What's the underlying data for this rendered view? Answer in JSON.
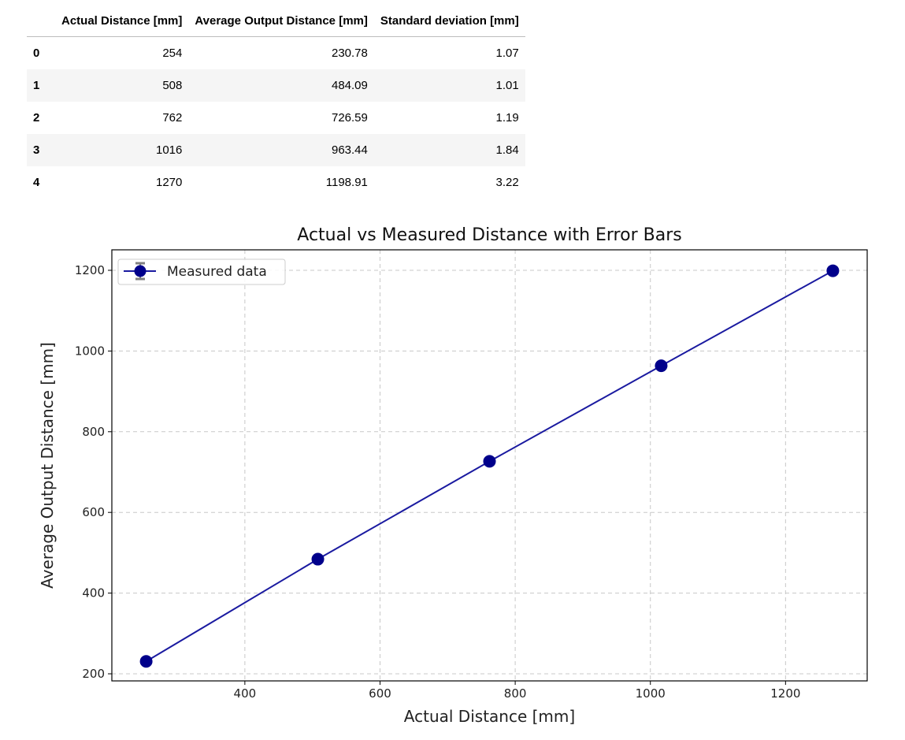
{
  "table": {
    "columns": [
      "Actual Distance [mm]",
      "Average Output Distance [mm]",
      "Standard deviation [mm]"
    ],
    "rows": [
      {
        "index": "0",
        "cells": [
          "254",
          "230.78",
          "1.07"
        ]
      },
      {
        "index": "1",
        "cells": [
          "508",
          "484.09",
          "1.01"
        ]
      },
      {
        "index": "2",
        "cells": [
          "762",
          "726.59",
          "1.19"
        ]
      },
      {
        "index": "3",
        "cells": [
          "1016",
          "963.44",
          "1.84"
        ]
      },
      {
        "index": "4",
        "cells": [
          "1270",
          "1198.91",
          "3.22"
        ]
      }
    ]
  },
  "chart_data": {
    "type": "line",
    "title": "Actual vs Measured Distance with Error Bars",
    "xlabel": "Actual Distance [mm]",
    "ylabel": "Average Output Distance [mm]",
    "x": [
      254,
      508,
      762,
      1016,
      1270
    ],
    "series": [
      {
        "name": "Measured data",
        "values": [
          230.78,
          484.09,
          726.59,
          963.44,
          1198.91
        ],
        "errors": [
          1.07,
          1.01,
          1.19,
          1.84,
          3.22
        ],
        "color": "#00008b",
        "line_color": "#1a1aa0",
        "error_color": "#808080"
      }
    ],
    "xlim": [
      203.2,
      1320.8
    ],
    "ylim": [
      182.4,
      1250.8
    ],
    "xticks": [
      "400",
      "600",
      "800",
      "1000",
      "1200"
    ],
    "yticks": [
      "200",
      "400",
      "600",
      "800",
      "1000",
      "1200"
    ],
    "grid": true,
    "legend": "upper-left"
  }
}
